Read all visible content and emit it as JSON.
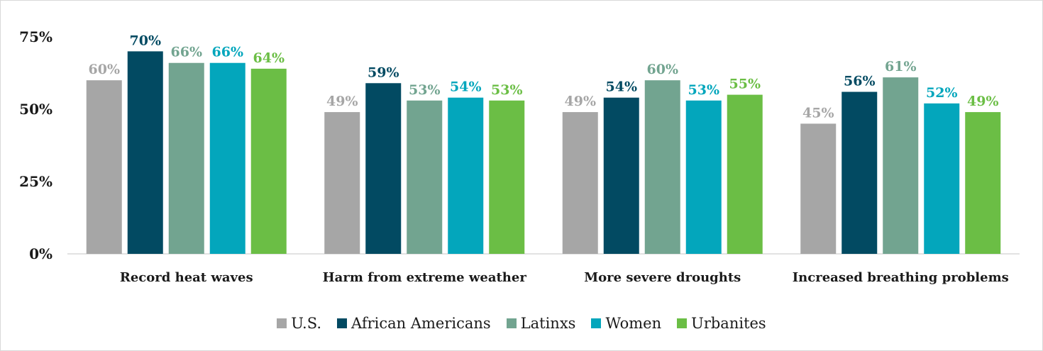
{
  "chart_data": {
    "type": "bar",
    "categories": [
      "Record heat waves",
      "Harm from extreme weather",
      "More severe droughts",
      "Increased breathing problems"
    ],
    "series": [
      {
        "name": "U.S.",
        "color": "#a6a6a6",
        "values": [
          60,
          49,
          49,
          45
        ]
      },
      {
        "name": "African Americans",
        "color": "#024a62",
        "values": [
          70,
          59,
          54,
          56
        ]
      },
      {
        "name": "Latinxs",
        "color": "#72a490",
        "values": [
          66,
          53,
          60,
          61
        ]
      },
      {
        "name": "Women",
        "color": "#03a6bc",
        "values": [
          66,
          54,
          53,
          52
        ]
      },
      {
        "name": "Urbanites",
        "color": "#6bbe45",
        "values": [
          64,
          53,
          55,
          49
        ]
      }
    ],
    "ylim": [
      0,
      75
    ],
    "yticks": [
      "0%",
      "25%",
      "50%",
      "75%"
    ],
    "legend_position": "bottom",
    "grid": false,
    "value_suffix": "%"
  }
}
